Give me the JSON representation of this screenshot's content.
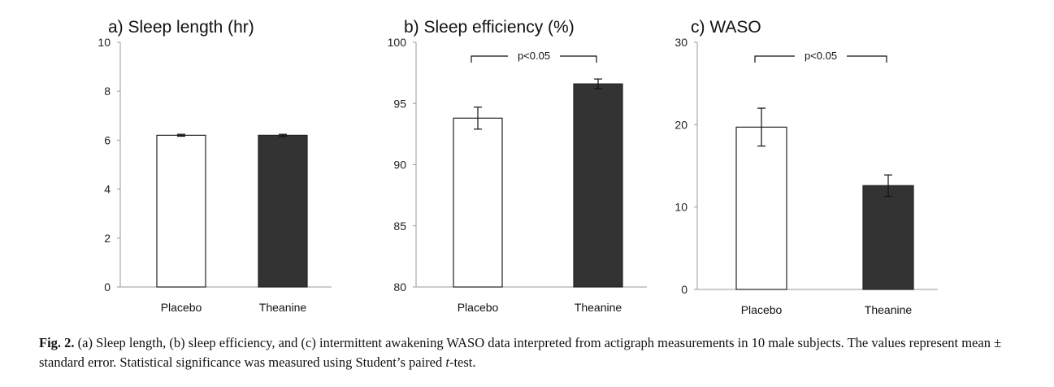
{
  "chart_data": [
    {
      "type": "bar",
      "title": "a) Sleep length (hr)",
      "categories": [
        "Placebo",
        "Theanine"
      ],
      "values": [
        6.2,
        6.2
      ],
      "errors": [
        0.04,
        0.04
      ],
      "ylim": [
        0,
        10
      ],
      "yticks": [
        "0",
        "2",
        "4",
        "6",
        "8",
        "10"
      ],
      "colors": [
        "#ffffff",
        "#333333"
      ],
      "annotation": ""
    },
    {
      "type": "bar",
      "title": "b) Sleep efficiency (%)",
      "categories": [
        "Placebo",
        "Theanine"
      ],
      "values": [
        93.8,
        96.6
      ],
      "errors": [
        0.9,
        0.4
      ],
      "ylim": [
        80,
        100
      ],
      "yticks": [
        "80",
        "85",
        "90",
        "95",
        "100"
      ],
      "colors": [
        "#ffffff",
        "#333333"
      ],
      "annotation": "p<0.05"
    },
    {
      "type": "bar",
      "title": "c) WASO",
      "categories": [
        "Placebo",
        "Theanine"
      ],
      "values": [
        19.7,
        12.6
      ],
      "errors": [
        2.3,
        1.3
      ],
      "ylim": [
        0,
        30
      ],
      "yticks": [
        "0",
        "10",
        "20",
        "30"
      ],
      "colors": [
        "#ffffff",
        "#333333"
      ],
      "annotation": "p<0.05"
    }
  ],
  "caption": {
    "lead": "Fig. 2.",
    "text1": " (a) Sleep length, (b) sleep efficiency, and (c) intermittent awakening WASO data interpreted from actigraph measurements in 10 male subjects. The values represent mean ± standard error. Statistical significance was measured using Student’s paired ",
    "italic": "t",
    "text2": "-test."
  }
}
